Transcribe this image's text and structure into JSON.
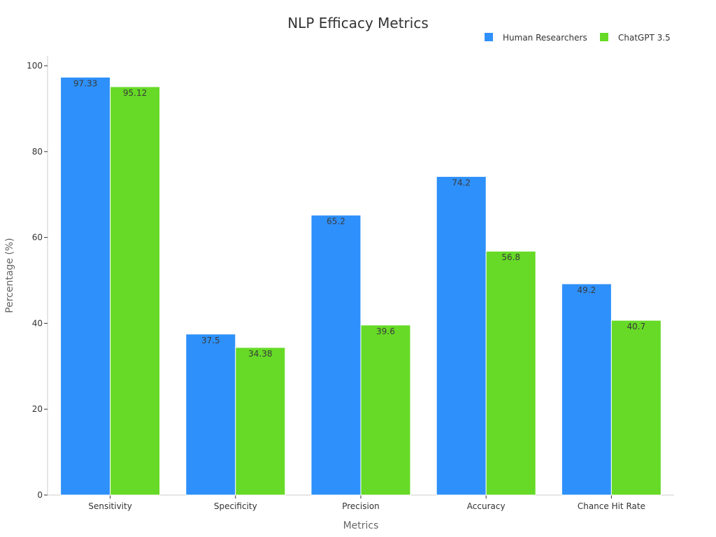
{
  "chart_data": {
    "type": "bar",
    "title": "NLP Efficacy Metrics",
    "xlabel": "Metrics",
    "ylabel": "Percentage (%)",
    "categories": [
      "Sensitivity",
      "Specificity",
      "Precision",
      "Accuracy",
      "Chance Hit Rate"
    ],
    "series": [
      {
        "name": "Human Researchers",
        "color": "#2e90fa",
        "values": [
          97.33,
          37.5,
          65.2,
          74.2,
          49.2
        ]
      },
      {
        "name": "ChatGPT 3.5",
        "color": "#66da26",
        "values": [
          95.12,
          34.38,
          39.6,
          56.8,
          40.7
        ]
      }
    ],
    "ylim": [
      0,
      102.3
    ],
    "yticks": [
      0,
      20,
      40,
      60,
      80,
      100
    ],
    "legend_position": "top-right",
    "grid": false
  }
}
